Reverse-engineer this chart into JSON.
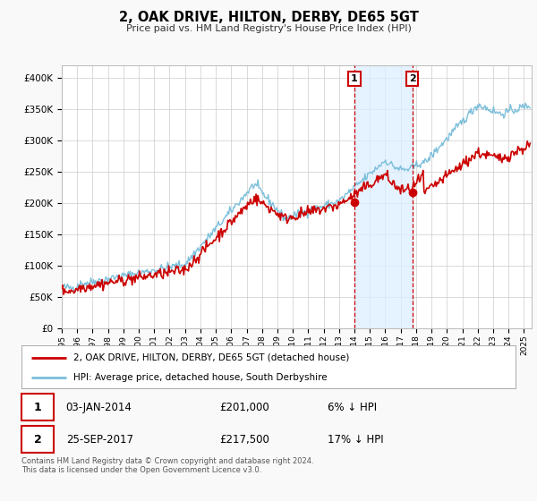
{
  "title": "2, OAK DRIVE, HILTON, DERBY, DE65 5GT",
  "subtitle": "Price paid vs. HM Land Registry's House Price Index (HPI)",
  "hpi_label": "HPI: Average price, detached house, South Derbyshire",
  "price_label": "2, OAK DRIVE, HILTON, DERBY, DE65 5GT (detached house)",
  "transaction1": {
    "date": "03-JAN-2014",
    "price": 201000,
    "pct": "6%",
    "dir": "↓",
    "label": "1"
  },
  "transaction2": {
    "date": "25-SEP-2017",
    "price": 217500,
    "pct": "17%",
    "dir": "↓",
    "label": "2"
  },
  "footer": "Contains HM Land Registry data © Crown copyright and database right 2024.\nThis data is licensed under the Open Government Licence v3.0.",
  "ylim": [
    0,
    420000
  ],
  "yticks": [
    0,
    50000,
    100000,
    150000,
    200000,
    250000,
    300000,
    350000,
    400000
  ],
  "ytick_labels": [
    "£0",
    "£50K",
    "£100K",
    "£150K",
    "£200K",
    "£250K",
    "£300K",
    "£350K",
    "£400K"
  ],
  "bg_color": "#f9f9f9",
  "plot_bg_color": "#ffffff",
  "grid_color": "#cccccc",
  "hpi_color": "#7bbfdb",
  "price_color": "#cc0000",
  "vline_color": "#cc0000",
  "marker_color": "#cc0000",
  "shade_color": "#ddeeff",
  "transaction1_x": 2014.0,
  "transaction2_x": 2017.75,
  "xmin": 1995,
  "xmax": 2025.5
}
